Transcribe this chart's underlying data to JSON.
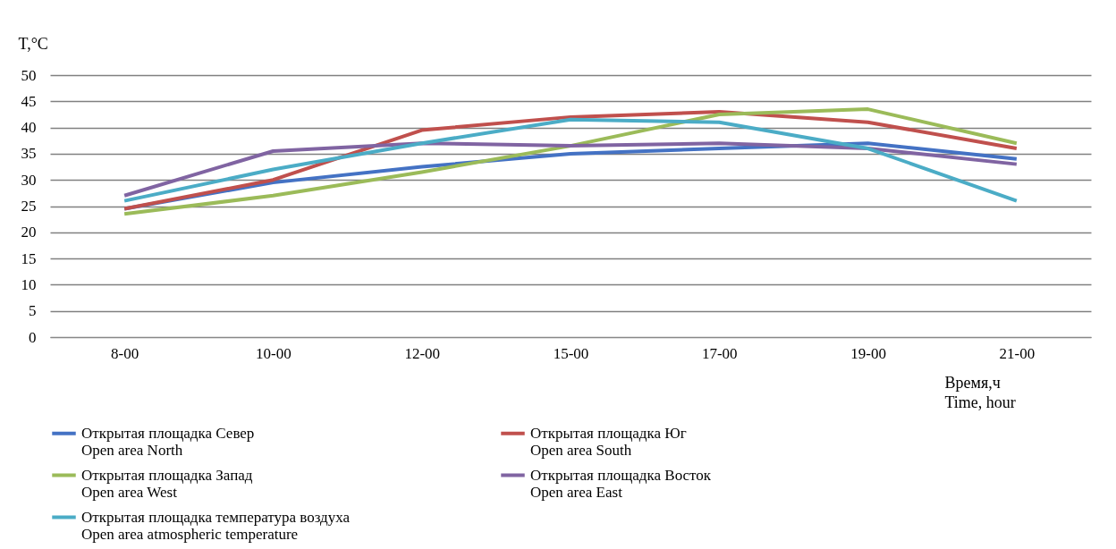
{
  "chart_data": {
    "type": "line",
    "ylabel": "T,°C",
    "xlabel": "Время,ч\nTime, hour",
    "categories": [
      "8-00",
      "10-00",
      "12-00",
      "15-00",
      "17-00",
      "19-00",
      "21-00"
    ],
    "series": [
      {
        "name": "Открытая площадка Север\nOpen area North",
        "color": "#4472c4",
        "values": [
          24.5,
          29.5,
          32.5,
          35,
          36,
          37,
          34
        ]
      },
      {
        "name": "Открытая площадка Юг\nOpen area South",
        "color": "#c0504d",
        "values": [
          24.5,
          30,
          39.5,
          42,
          43,
          41,
          36
        ]
      },
      {
        "name": "Открытая площадка Запад\nOpen area West",
        "color": "#9bbb59",
        "values": [
          23.5,
          27,
          31.5,
          36.5,
          42.5,
          43.5,
          37
        ]
      },
      {
        "name": "Открытая площадка Восток\nOpen area East",
        "color": "#8064a2",
        "values": [
          27,
          35.5,
          37,
          36.5,
          37,
          36,
          33
        ]
      },
      {
        "name": "Открытая площадка температура воздуха\nOpen area atmospheric temperature",
        "color": "#4bacc6",
        "values": [
          26,
          32,
          37,
          41.5,
          41,
          36,
          26
        ]
      }
    ],
    "ylim": [
      0,
      50
    ],
    "yticks": [
      0,
      5,
      10,
      15,
      20,
      25,
      30,
      35,
      40,
      45,
      50
    ],
    "grid": "y",
    "legend": "bottom",
    "marker": "none",
    "line_style": "solid"
  }
}
